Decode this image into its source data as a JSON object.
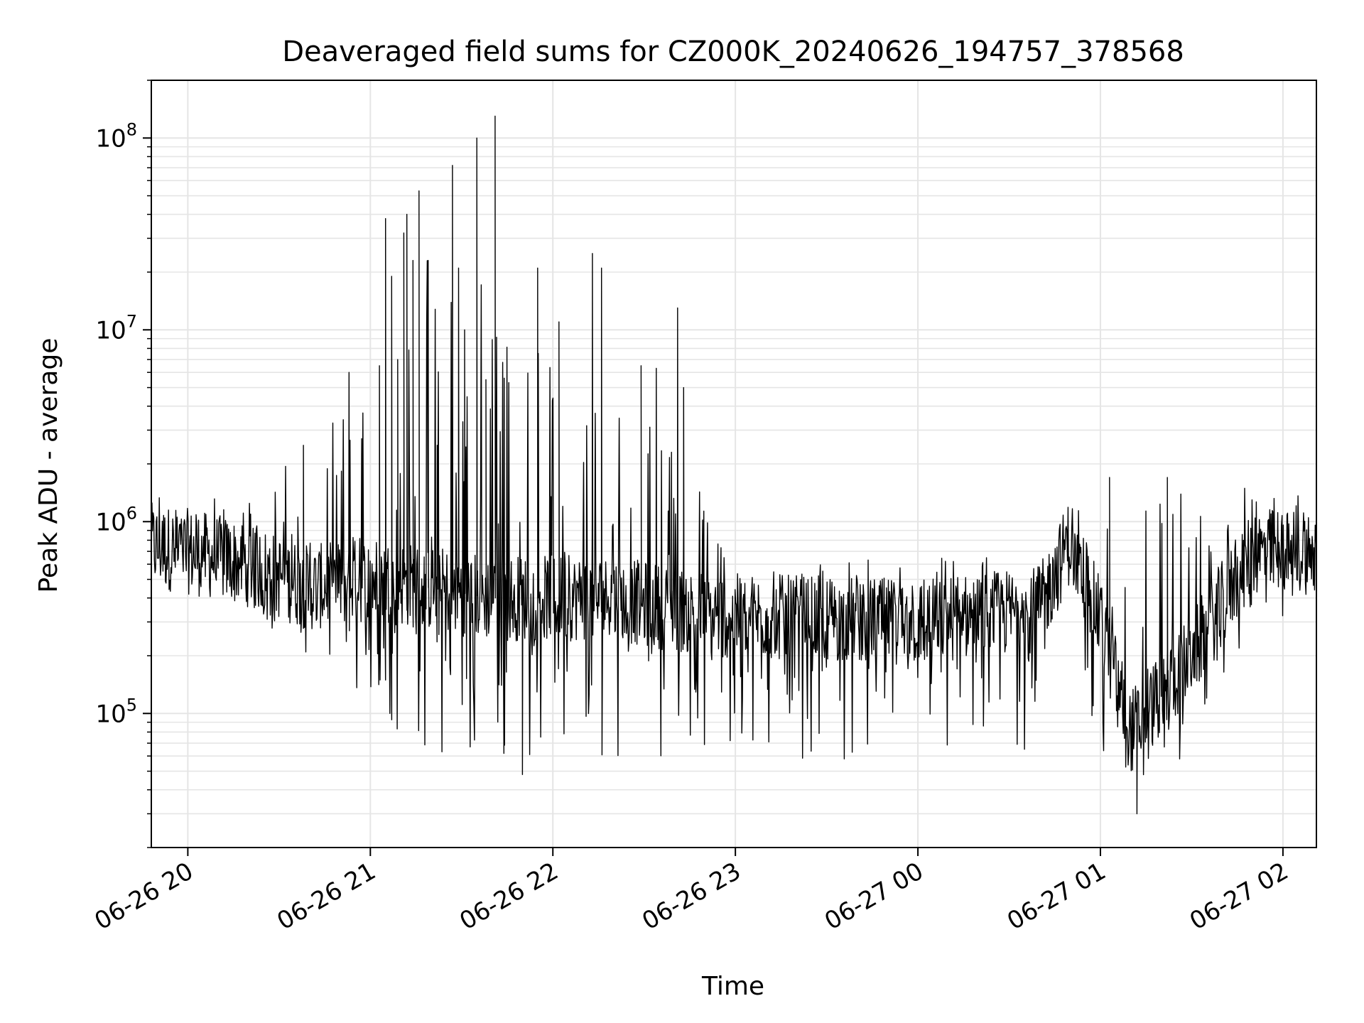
{
  "chart_data": {
    "type": "line",
    "title": "Deaveraged field sums for CZ000K_20240626_194757_378568",
    "xlabel": "Time",
    "ylabel": "Peak ADU - average",
    "y_scale": "log",
    "xlim": [
      "2024-06-26T19:48:00",
      "2024-06-27T02:11:00"
    ],
    "ylim": [
      20000,
      200000000
    ],
    "x_ticks": [
      {
        "t": "2024-06-26T20:00:00",
        "label": "06-26 20"
      },
      {
        "t": "2024-06-26T21:00:00",
        "label": "06-26 21"
      },
      {
        "t": "2024-06-26T22:00:00",
        "label": "06-26 22"
      },
      {
        "t": "2024-06-26T23:00:00",
        "label": "06-26 23"
      },
      {
        "t": "2024-06-27T00:00:00",
        "label": "06-27 00"
      },
      {
        "t": "2024-06-27T01:00:00",
        "label": "06-27 01"
      },
      {
        "t": "2024-06-27T02:00:00",
        "label": "06-27 02"
      }
    ],
    "y_ticks": [
      {
        "v": 100000,
        "base": "10",
        "exp": "5"
      },
      {
        "v": 1000000,
        "base": "10",
        "exp": "6"
      },
      {
        "v": 10000000,
        "base": "10",
        "exp": "7"
      },
      {
        "v": 100000000,
        "base": "10",
        "exp": "8"
      }
    ],
    "grid": true,
    "line_color": "#000000",
    "grid_color": "#e5e5e5",
    "series_profile": [
      {
        "t": "2024-06-26T19:48:00",
        "base": 750000,
        "lo": 600000,
        "hi": 1500000
      },
      {
        "t": "2024-06-26T20:00:00",
        "base": 700000,
        "lo": 500000,
        "hi": 1300000
      },
      {
        "t": "2024-06-26T20:20:00",
        "base": 600000,
        "lo": 350000,
        "hi": 1500000
      },
      {
        "t": "2024-06-26T20:40:00",
        "base": 450000,
        "lo": 180000,
        "hi": 2500000
      },
      {
        "t": "2024-06-26T21:00:00",
        "base": 500000,
        "lo": 100000,
        "hi": 6000000
      },
      {
        "t": "2024-06-26T21:20:00",
        "base": 450000,
        "lo": 60000,
        "hi": 30000000
      },
      {
        "t": "2024-06-26T21:40:00",
        "base": 400000,
        "lo": 55000,
        "hi": 20000000
      },
      {
        "t": "2024-06-26T22:00:00",
        "base": 400000,
        "lo": 55000,
        "hi": 10000000
      },
      {
        "t": "2024-06-26T22:20:00",
        "base": 400000,
        "lo": 60000,
        "hi": 5000000
      },
      {
        "t": "2024-06-26T22:40:00",
        "base": 350000,
        "lo": 60000,
        "hi": 3000000
      },
      {
        "t": "2024-06-26T23:00:00",
        "base": 320000,
        "lo": 60000,
        "hi": 600000
      },
      {
        "t": "2024-06-27T00:00:00",
        "base": 300000,
        "lo": 55000,
        "hi": 650000
      },
      {
        "t": "2024-06-27T00:40:00",
        "base": 350000,
        "lo": 60000,
        "hi": 700000
      },
      {
        "t": "2024-06-27T00:50:00",
        "base": 800000,
        "lo": 400000,
        "hi": 1200000
      },
      {
        "t": "2024-06-27T01:00:00",
        "base": 300000,
        "lo": 55000,
        "hi": 1500000
      },
      {
        "t": "2024-06-27T01:10:00",
        "base": 80000,
        "lo": 40000,
        "hi": 1500000
      },
      {
        "t": "2024-06-27T01:30:00",
        "base": 200000,
        "lo": 60000,
        "hi": 1500000
      },
      {
        "t": "2024-06-27T01:50:00",
        "base": 700000,
        "lo": 300000,
        "hi": 1500000
      },
      {
        "t": "2024-06-27T02:11:00",
        "base": 700000,
        "lo": 300000,
        "hi": 1400000
      }
    ],
    "spikes": [
      {
        "t": "2024-06-26T20:38:00",
        "v": 2500000
      },
      {
        "t": "2024-06-26T20:53:00",
        "v": 6000000
      },
      {
        "t": "2024-06-26T21:03:00",
        "v": 6500000
      },
      {
        "t": "2024-06-26T21:05:00",
        "v": 38000000
      },
      {
        "t": "2024-06-26T21:07:00",
        "v": 19000000
      },
      {
        "t": "2024-06-26T21:09:00",
        "v": 7000000
      },
      {
        "t": "2024-06-26T21:11:00",
        "v": 32000000
      },
      {
        "t": "2024-06-26T21:12:00",
        "v": 40000000
      },
      {
        "t": "2024-06-26T21:14:00",
        "v": 23000000
      },
      {
        "t": "2024-06-26T21:16:00",
        "v": 53000000
      },
      {
        "t": "2024-06-26T21:19:00",
        "v": 23000000
      },
      {
        "t": "2024-06-26T21:22:00",
        "v": 2500000
      },
      {
        "t": "2024-06-26T21:27:00",
        "v": 72000000
      },
      {
        "t": "2024-06-26T21:29:00",
        "v": 21000000
      },
      {
        "t": "2024-06-26T21:31:00",
        "v": 10000000
      },
      {
        "t": "2024-06-26T21:35:00",
        "v": 100000000
      },
      {
        "t": "2024-06-26T21:38:00",
        "v": 5500000
      },
      {
        "t": "2024-06-26T21:41:00",
        "v": 130000000
      },
      {
        "t": "2024-06-26T21:44:00",
        "v": 5600000
      },
      {
        "t": "2024-06-26T21:55:00",
        "v": 21000000
      },
      {
        "t": "2024-06-26T22:02:00",
        "v": 11000000
      },
      {
        "t": "2024-06-26T22:13:00",
        "v": 25000000
      },
      {
        "t": "2024-06-26T22:16:00",
        "v": 21000000
      },
      {
        "t": "2024-06-26T22:29:00",
        "v": 6500000
      },
      {
        "t": "2024-06-26T22:34:00",
        "v": 6300000
      },
      {
        "t": "2024-06-26T22:39:00",
        "v": 2300000
      },
      {
        "t": "2024-06-26T22:41:00",
        "v": 13000000
      },
      {
        "t": "2024-06-26T22:43:00",
        "v": 5000000
      },
      {
        "t": "2024-06-27T01:03:00",
        "v": 1700000
      },
      {
        "t": "2024-06-27T01:12:00",
        "v": 30000
      },
      {
        "t": "2024-06-27T01:22:00",
        "v": 1700000
      },
      {
        "t": "2024-06-26T21:50:00",
        "v": 48000
      }
    ]
  }
}
